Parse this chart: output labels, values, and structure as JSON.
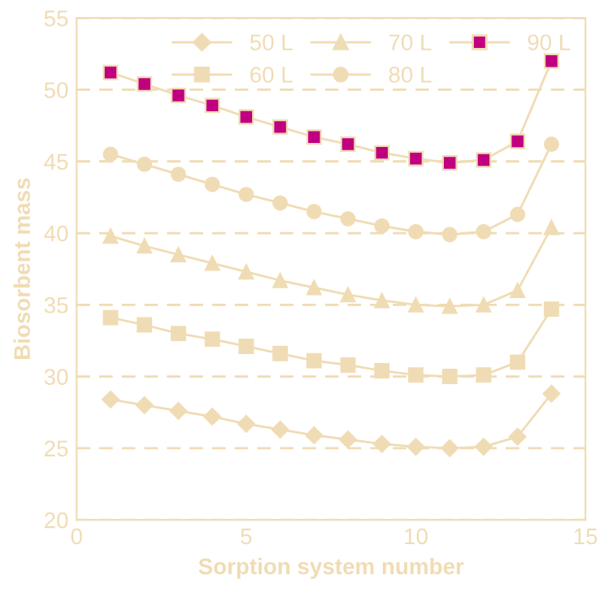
{
  "chart_data": {
    "type": "line",
    "xlabel": "Sorption system number",
    "ylabel": "Biosorbent mass",
    "x": [
      1,
      2,
      3,
      4,
      5,
      6,
      7,
      8,
      9,
      10,
      11,
      12,
      13,
      14
    ],
    "series": [
      {
        "name": "50 L",
        "color": "#f0dcb4",
        "marker": "diamond",
        "values": [
          28.4,
          28.0,
          27.6,
          27.2,
          26.7,
          26.3,
          25.9,
          25.6,
          25.3,
          25.1,
          25.0,
          25.1,
          25.8,
          28.8
        ]
      },
      {
        "name": "60 L",
        "color": "#f0dcb4",
        "marker": "square",
        "values": [
          34.1,
          33.6,
          33.0,
          32.6,
          32.1,
          31.6,
          31.1,
          30.8,
          30.4,
          30.1,
          30.0,
          30.1,
          31.0,
          34.7
        ]
      },
      {
        "name": "70 L",
        "color": "#f0dcb4",
        "marker": "triangle",
        "values": [
          39.8,
          39.1,
          38.5,
          37.9,
          37.3,
          36.7,
          36.2,
          35.7,
          35.3,
          35.0,
          34.9,
          35.0,
          36.0,
          40.4
        ]
      },
      {
        "name": "80 L",
        "color": "#f0dcb4",
        "marker": "circle",
        "values": [
          45.5,
          44.8,
          44.1,
          43.4,
          42.7,
          42.1,
          41.5,
          41.0,
          40.5,
          40.1,
          39.9,
          40.1,
          41.3,
          46.2
        ]
      },
      {
        "name": "90 L",
        "color": "#c0007f",
        "marker": "square",
        "values": [
          51.2,
          50.4,
          49.6,
          48.9,
          48.1,
          47.4,
          46.7,
          46.2,
          45.6,
          45.2,
          44.9,
          45.1,
          46.4,
          52.0
        ]
      }
    ],
    "xlim": [
      0,
      15
    ],
    "xticks": [
      0,
      5,
      10,
      15
    ],
    "ylim": [
      20,
      55
    ],
    "yticks": [
      20,
      25,
      30,
      35,
      40,
      45,
      50,
      55
    ],
    "grid": "y",
    "legend": "top",
    "line_style": "solid"
  }
}
